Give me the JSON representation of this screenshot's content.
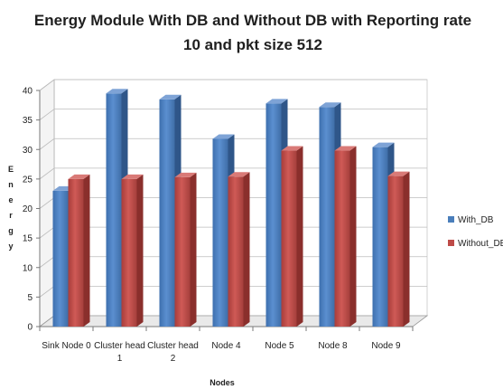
{
  "chart_data": {
    "type": "bar",
    "title_lines": [
      "Energy Module With DB and Without DB with Reporting rate",
      "10 and pkt size 512"
    ],
    "xlabel": "Nodes",
    "ylabel": "Energy",
    "ylabel_letters": [
      "E",
      "n",
      "e",
      "r",
      "g",
      "y"
    ],
    "ylim": [
      0,
      40
    ],
    "yticks": [
      "0",
      "5",
      "10",
      "15",
      "20",
      "25",
      "30",
      "35",
      "40"
    ],
    "grid": true,
    "legend_position": "right",
    "categories": [
      [
        "Sink Node 0"
      ],
      [
        "Cluster head",
        "1"
      ],
      [
        "Cluster head",
        "2"
      ],
      [
        "Node 4"
      ],
      [
        "Node 5"
      ],
      [
        "Node 8"
      ],
      [
        "Node 9"
      ]
    ],
    "series": [
      {
        "name": "With_DB",
        "color": "#4a7ebb",
        "values": [
          23,
          39.5,
          38.5,
          31.8,
          37.8,
          37.2,
          30.4
        ]
      },
      {
        "name": "Without_DB",
        "color": "#be4b48",
        "values": [
          25,
          25,
          25.3,
          25.4,
          29.8,
          29.8,
          25.5
        ]
      }
    ]
  }
}
